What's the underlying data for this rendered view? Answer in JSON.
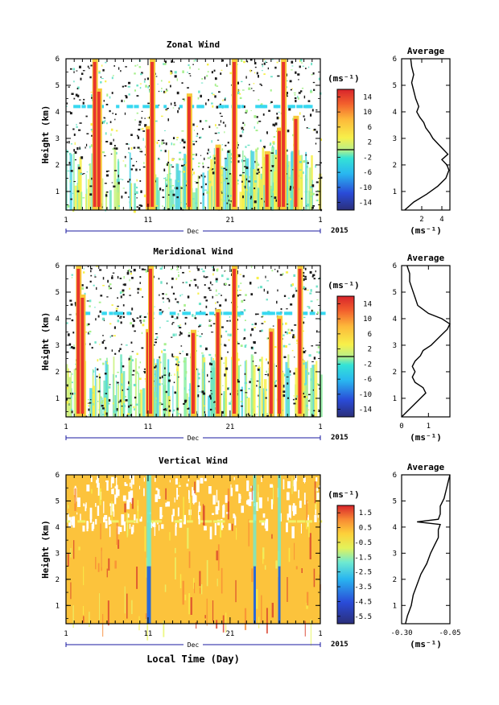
{
  "chart_data": [
    {
      "type": "heatmap",
      "title": "Zonal Wind",
      "ylabel": "Height (km)",
      "yticks": [
        "1",
        "2",
        "3",
        "4",
        "5",
        "6"
      ],
      "ylim": [
        0.3,
        6
      ],
      "xticks": [
        "1",
        "11",
        "21",
        "1"
      ],
      "xlim": [
        1,
        32
      ],
      "month_label": "Dec",
      "year_label": "2015",
      "colorbar": {
        "unit": "(ms⁻¹)",
        "ticks": [
          "14",
          "10",
          "6",
          "2",
          "-2",
          "-6",
          "-10",
          "-14"
        ],
        "range": [
          -16,
          16
        ]
      },
      "strong_columns_day": [
        4.5,
        5.0,
        11.0,
        11.5,
        16.0,
        19.5,
        21.5,
        25.5,
        27.0,
        27.5,
        29.0
      ],
      "average": {
        "title": "Average",
        "xlabel": "(ms⁻¹)",
        "xticks": [
          "2",
          "4"
        ],
        "xlim": [
          0,
          4.8
        ],
        "height": [
          0.3,
          0.6,
          0.9,
          1.2,
          1.5,
          1.8,
          2.0,
          2.2,
          2.4,
          2.6,
          2.8,
          3.0,
          3.2,
          3.4,
          3.6,
          3.8,
          4.0,
          4.2,
          4.5,
          4.8,
          5.1,
          5.4,
          5.7,
          6.0
        ],
        "value": [
          0.3,
          1.2,
          2.5,
          3.6,
          4.4,
          4.7,
          4.5,
          4.0,
          4.6,
          4.1,
          3.6,
          3.1,
          2.8,
          2.4,
          2.2,
          1.8,
          1.5,
          1.7,
          1.4,
          1.2,
          1.0,
          1.2,
          1.0,
          0.9
        ]
      }
    },
    {
      "type": "heatmap",
      "title": "Meridional Wind",
      "ylabel": "Height (km)",
      "yticks": [
        "1",
        "2",
        "3",
        "4",
        "5",
        "6"
      ],
      "ylim": [
        0.3,
        6
      ],
      "xticks": [
        "1",
        "11",
        "21",
        "1"
      ],
      "xlim": [
        1,
        32
      ],
      "month_label": "Dec",
      "year_label": "2015",
      "colorbar": {
        "unit": "(ms⁻¹)",
        "ticks": [
          "14",
          "10",
          "6",
          "2",
          "-2",
          "-6",
          "-10",
          "-14"
        ],
        "range": [
          -16,
          16
        ]
      },
      "strong_columns_day": [
        2.5,
        3.0,
        11.0,
        11.3,
        16.5,
        19.5,
        21.5,
        26.0,
        27.0,
        29.5
      ],
      "average": {
        "title": "Average",
        "xlabel": "(ms⁻¹)",
        "xticks": [
          "0",
          "1"
        ],
        "xlim": [
          0,
          1.8
        ],
        "height": [
          0.3,
          0.6,
          0.9,
          1.2,
          1.4,
          1.6,
          1.8,
          2.0,
          2.2,
          2.4,
          2.6,
          2.8,
          3.0,
          3.2,
          3.4,
          3.6,
          3.8,
          4.0,
          4.2,
          4.5,
          4.8,
          5.1,
          5.4,
          5.7,
          6.0
        ],
        "value": [
          0.0,
          0.3,
          0.6,
          0.9,
          0.8,
          0.5,
          0.4,
          0.5,
          0.4,
          0.5,
          0.7,
          0.8,
          1.1,
          1.3,
          1.5,
          1.7,
          1.8,
          1.5,
          1.0,
          0.6,
          0.5,
          0.4,
          0.3,
          0.3,
          0.2
        ]
      }
    },
    {
      "type": "heatmap",
      "title": "Vertical Wind",
      "ylabel": "Height (km)",
      "yticks": [
        "1",
        "2",
        "3",
        "4",
        "5",
        "6"
      ],
      "ylim": [
        0.3,
        6
      ],
      "xticks": [
        "1",
        "11",
        "21",
        "1"
      ],
      "xlim": [
        1,
        32
      ],
      "month_label": "Dec",
      "year_label": "2015",
      "xlabel": "Local Time (Day)",
      "colorbar": {
        "unit": "(ms⁻¹)",
        "ticks": [
          "1.5",
          "0.5",
          "-0.5",
          "-1.5",
          "-2.5",
          "-3.5",
          "-4.5",
          "-5.5"
        ],
        "range": [
          -6,
          2
        ]
      },
      "strong_columns_day": [
        11.0,
        11.2,
        24.0,
        27.0
      ],
      "average": {
        "title": "Average",
        "xlabel": "(ms⁻¹)",
        "xticks": [
          "-0.30",
          "-0.05"
        ],
        "xlim": [
          -0.3,
          -0.05
        ],
        "height": [
          0.3,
          0.6,
          1.0,
          1.4,
          1.8,
          2.2,
          2.6,
          3.0,
          3.3,
          3.6,
          3.9,
          4.1,
          4.2,
          4.3,
          4.5,
          4.8,
          5.1,
          5.4,
          5.7,
          6.0
        ],
        "value": [
          -0.28,
          -0.27,
          -0.25,
          -0.24,
          -0.22,
          -0.2,
          -0.17,
          -0.15,
          -0.13,
          -0.11,
          -0.11,
          -0.1,
          -0.22,
          -0.11,
          -0.1,
          -0.1,
          -0.08,
          -0.07,
          -0.06,
          -0.05
        ]
      }
    }
  ]
}
